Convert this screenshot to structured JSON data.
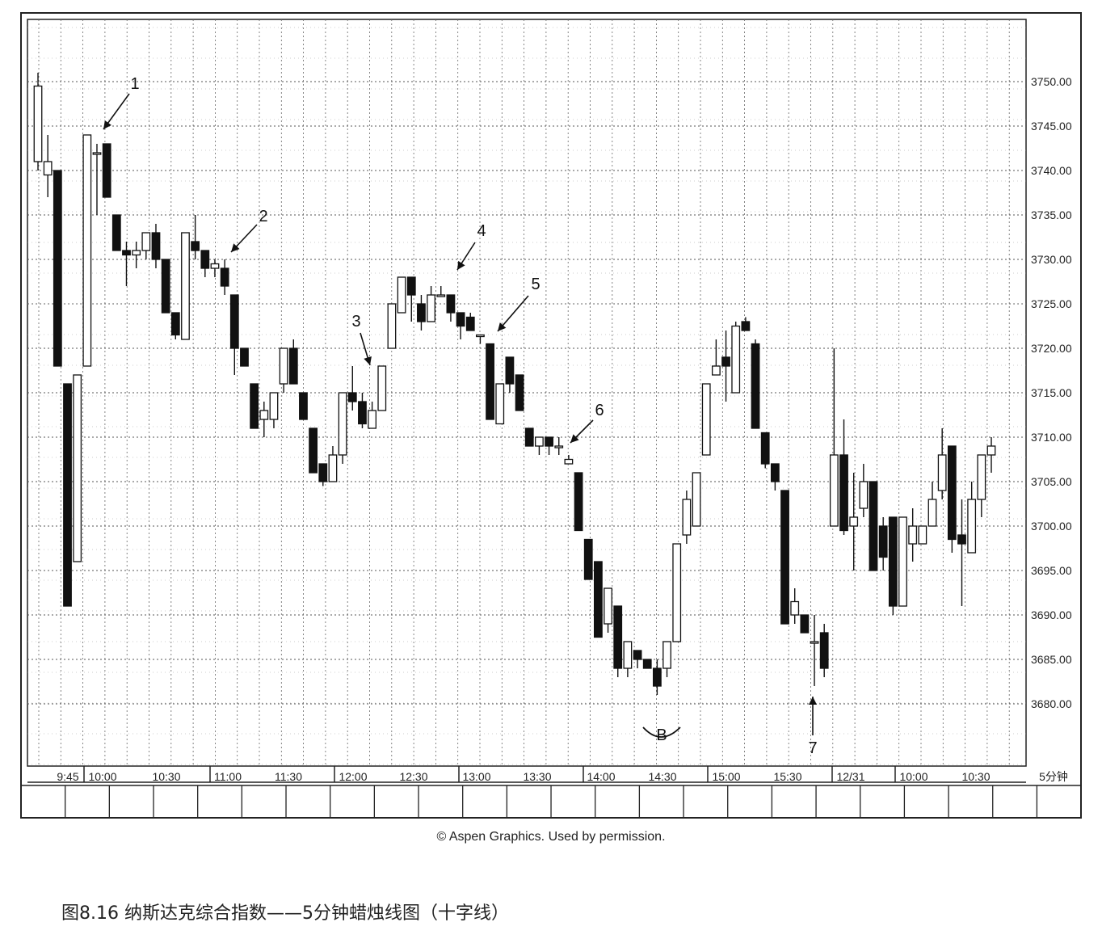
{
  "chart_data": {
    "type": "candlestick",
    "interval_label": "5分钟",
    "y_ticks": [
      "3680.00",
      "3685.00",
      "3690.00",
      "3695.00",
      "3700.00",
      "3705.00",
      "3710.00",
      "3715.00",
      "3720.00",
      "3725.00",
      "3730.00",
      "3735.00",
      "3740.00",
      "3745.00",
      "3750.00"
    ],
    "ylim": [
      3673,
      3757
    ],
    "x_ticks": [
      "9:45",
      "10:00",
      "10:30",
      "11:00",
      "11:30",
      "12:00",
      "12:30",
      "13:00",
      "13:30",
      "14:00",
      "14:30",
      "15:00",
      "15:30",
      "12/31",
      "10:00",
      "10:30"
    ],
    "annotations": [
      "1",
      "2",
      "3",
      "4",
      "5",
      "6",
      "7",
      "B"
    ],
    "candles": [
      {
        "o": 3741,
        "h": 3751,
        "l": 3740,
        "c": 3749.5
      },
      {
        "o": 3739.5,
        "h": 3744,
        "l": 3737,
        "c": 3741
      },
      {
        "o": 3740,
        "h": 3740,
        "l": 3718,
        "c": 3718
      },
      {
        "o": 3716,
        "h": 3716,
        "l": 3691,
        "c": 3691
      },
      {
        "o": 3696,
        "h": 3717,
        "l": 3696,
        "c": 3717
      },
      {
        "o": 3718,
        "h": 3744,
        "l": 3718,
        "c": 3744
      },
      {
        "o": 3742,
        "h": 3743,
        "l": 3735,
        "c": 3742
      },
      {
        "o": 3743,
        "h": 3743,
        "l": 3737,
        "c": 3737
      },
      {
        "o": 3735,
        "h": 3735,
        "l": 3731,
        "c": 3731
      },
      {
        "o": 3731,
        "h": 3732,
        "l": 3727,
        "c": 3730.5
      },
      {
        "o": 3730.5,
        "h": 3732,
        "l": 3729,
        "c": 3731
      },
      {
        "o": 3731,
        "h": 3733,
        "l": 3730,
        "c": 3733
      },
      {
        "o": 3733,
        "h": 3734,
        "l": 3729,
        "c": 3730
      },
      {
        "o": 3730,
        "h": 3730,
        "l": 3724,
        "c": 3724
      },
      {
        "o": 3724,
        "h": 3724,
        "l": 3721,
        "c": 3721.5
      },
      {
        "o": 3721,
        "h": 3733,
        "l": 3721,
        "c": 3733
      },
      {
        "o": 3732,
        "h": 3735,
        "l": 3730,
        "c": 3731
      },
      {
        "o": 3731,
        "h": 3731,
        "l": 3728,
        "c": 3729
      },
      {
        "o": 3729,
        "h": 3730,
        "l": 3728,
        "c": 3729.5
      },
      {
        "o": 3729,
        "h": 3730,
        "l": 3726,
        "c": 3727
      },
      {
        "o": 3726,
        "h": 3726,
        "l": 3717,
        "c": 3720
      },
      {
        "o": 3720,
        "h": 3720,
        "l": 3718,
        "c": 3718
      },
      {
        "o": 3716,
        "h": 3716,
        "l": 3711,
        "c": 3711
      },
      {
        "o": 3712,
        "h": 3714,
        "l": 3710,
        "c": 3713
      },
      {
        "o": 3712,
        "h": 3715,
        "l": 3711,
        "c": 3715
      },
      {
        "o": 3716,
        "h": 3720,
        "l": 3715,
        "c": 3720
      },
      {
        "o": 3720,
        "h": 3721,
        "l": 3716,
        "c": 3716
      },
      {
        "o": 3715,
        "h": 3715,
        "l": 3712,
        "c": 3712
      },
      {
        "o": 3711,
        "h": 3711,
        "l": 3706,
        "c": 3706
      },
      {
        "o": 3707,
        "h": 3707,
        "l": 3704.5,
        "c": 3705
      },
      {
        "o": 3705,
        "h": 3709,
        "l": 3705,
        "c": 3708
      },
      {
        "o": 3708,
        "h": 3715,
        "l": 3707,
        "c": 3715
      },
      {
        "o": 3715,
        "h": 3718,
        "l": 3713,
        "c": 3714
      },
      {
        "o": 3714,
        "h": 3715,
        "l": 3711,
        "c": 3711.5
      },
      {
        "o": 3711,
        "h": 3714,
        "l": 3711,
        "c": 3713
      },
      {
        "o": 3713,
        "h": 3718,
        "l": 3713,
        "c": 3718
      },
      {
        "o": 3720,
        "h": 3725,
        "l": 3720,
        "c": 3725
      },
      {
        "o": 3724,
        "h": 3728,
        "l": 3724,
        "c": 3728
      },
      {
        "o": 3728,
        "h": 3728,
        "l": 3723,
        "c": 3726
      },
      {
        "o": 3725,
        "h": 3726,
        "l": 3722,
        "c": 3723
      },
      {
        "o": 3723,
        "h": 3727,
        "l": 3723,
        "c": 3726
      },
      {
        "o": 3726,
        "h": 3727,
        "l": 3726,
        "c": 3726
      },
      {
        "o": 3726,
        "h": 3726,
        "l": 3723,
        "c": 3724
      },
      {
        "o": 3724,
        "h": 3724,
        "l": 3721,
        "c": 3722.5
      },
      {
        "o": 3723.5,
        "h": 3724,
        "l": 3722,
        "c": 3722
      },
      {
        "o": 3721.5,
        "h": 3721.5,
        "l": 3720.5,
        "c": 3721.5
      },
      {
        "o": 3720.5,
        "h": 3720.5,
        "l": 3712,
        "c": 3712
      },
      {
        "o": 3711.5,
        "h": 3716,
        "l": 3711.5,
        "c": 3716
      },
      {
        "o": 3719,
        "h": 3719,
        "l": 3715,
        "c": 3716
      },
      {
        "o": 3717,
        "h": 3717,
        "l": 3713,
        "c": 3713
      },
      {
        "o": 3711,
        "h": 3711,
        "l": 3709,
        "c": 3709
      },
      {
        "o": 3709,
        "h": 3710,
        "l": 3708,
        "c": 3710
      },
      {
        "o": 3710,
        "h": 3710,
        "l": 3708,
        "c": 3709
      },
      {
        "o": 3709,
        "h": 3710,
        "l": 3708,
        "c": 3709
      },
      {
        "o": 3707,
        "h": 3708,
        "l": 3707,
        "c": 3707.5
      },
      {
        "o": 3706,
        "h": 3706,
        "l": 3699.5,
        "c": 3699.5
      },
      {
        "o": 3698.5,
        "h": 3698.5,
        "l": 3694,
        "c": 3694
      },
      {
        "o": 3696,
        "h": 3696,
        "l": 3687.5,
        "c": 3687.5
      },
      {
        "o": 3689,
        "h": 3693,
        "l": 3688,
        "c": 3693
      },
      {
        "o": 3691,
        "h": 3691,
        "l": 3683,
        "c": 3684
      },
      {
        "o": 3684,
        "h": 3687,
        "l": 3683,
        "c": 3687
      },
      {
        "o": 3686,
        "h": 3686,
        "l": 3684,
        "c": 3685
      },
      {
        "o": 3685,
        "h": 3685,
        "l": 3684,
        "c": 3684
      },
      {
        "o": 3684,
        "h": 3685,
        "l": 3681,
        "c": 3682
      },
      {
        "o": 3684,
        "h": 3687,
        "l": 3683,
        "c": 3687
      },
      {
        "o": 3687,
        "h": 3698,
        "l": 3687,
        "c": 3698
      },
      {
        "o": 3699,
        "h": 3704,
        "l": 3698,
        "c": 3703
      },
      {
        "o": 3700,
        "h": 3706,
        "l": 3700,
        "c": 3706
      },
      {
        "o": 3708,
        "h": 3716,
        "l": 3708,
        "c": 3716
      },
      {
        "o": 3717,
        "h": 3721,
        "l": 3717,
        "c": 3718
      },
      {
        "o": 3719,
        "h": 3722,
        "l": 3714,
        "c": 3718
      },
      {
        "o": 3715,
        "h": 3723,
        "l": 3715,
        "c": 3722.5
      },
      {
        "o": 3723,
        "h": 3723.5,
        "l": 3722,
        "c": 3722
      },
      {
        "o": 3720.5,
        "h": 3721,
        "l": 3711,
        "c": 3711
      },
      {
        "o": 3710.5,
        "h": 3710.5,
        "l": 3706.5,
        "c": 3707
      },
      {
        "o": 3707,
        "h": 3707,
        "l": 3704,
        "c": 3705
      },
      {
        "o": 3704,
        "h": 3704,
        "l": 3689,
        "c": 3689
      },
      {
        "o": 3690,
        "h": 3693,
        "l": 3689,
        "c": 3691.5
      },
      {
        "o": 3690,
        "h": 3690,
        "l": 3688,
        "c": 3688
      },
      {
        "o": 3687,
        "h": 3690,
        "l": 3682,
        "c": 3687
      },
      {
        "o": 3688,
        "h": 3689,
        "l": 3683,
        "c": 3684
      },
      {
        "o": 3700,
        "h": 3720,
        "l": 3700,
        "c": 3708
      },
      {
        "o": 3708,
        "h": 3712,
        "l": 3699,
        "c": 3699.5
      },
      {
        "o": 3700,
        "h": 3706,
        "l": 3695,
        "c": 3701
      },
      {
        "o": 3702,
        "h": 3707,
        "l": 3701,
        "c": 3705
      },
      {
        "o": 3705,
        "h": 3705,
        "l": 3695,
        "c": 3695
      },
      {
        "o": 3700,
        "h": 3701,
        "l": 3695,
        "c": 3696.5
      },
      {
        "o": 3701,
        "h": 3701,
        "l": 3690,
        "c": 3691
      },
      {
        "o": 3691,
        "h": 3701,
        "l": 3691,
        "c": 3701
      },
      {
        "o": 3698,
        "h": 3702,
        "l": 3696,
        "c": 3700
      },
      {
        "o": 3698,
        "h": 3700,
        "l": 3698,
        "c": 3700
      },
      {
        "o": 3700,
        "h": 3705,
        "l": 3700,
        "c": 3703
      },
      {
        "o": 3704,
        "h": 3711,
        "l": 3703,
        "c": 3708
      },
      {
        "o": 3709,
        "h": 3709,
        "l": 3697,
        "c": 3698.5
      },
      {
        "o": 3699,
        "h": 3703,
        "l": 3691,
        "c": 3698
      },
      {
        "o": 3697,
        "h": 3705,
        "l": 3697,
        "c": 3703
      },
      {
        "o": 3703,
        "h": 3708,
        "l": 3701,
        "c": 3708
      },
      {
        "o": 3708,
        "h": 3710,
        "l": 3706,
        "c": 3709
      }
    ]
  },
  "credit": "© Aspen Graphics. Used by permission.",
  "caption": "图8.16 纳斯达克综合指数——5分钟蜡烛线图（十字线）"
}
